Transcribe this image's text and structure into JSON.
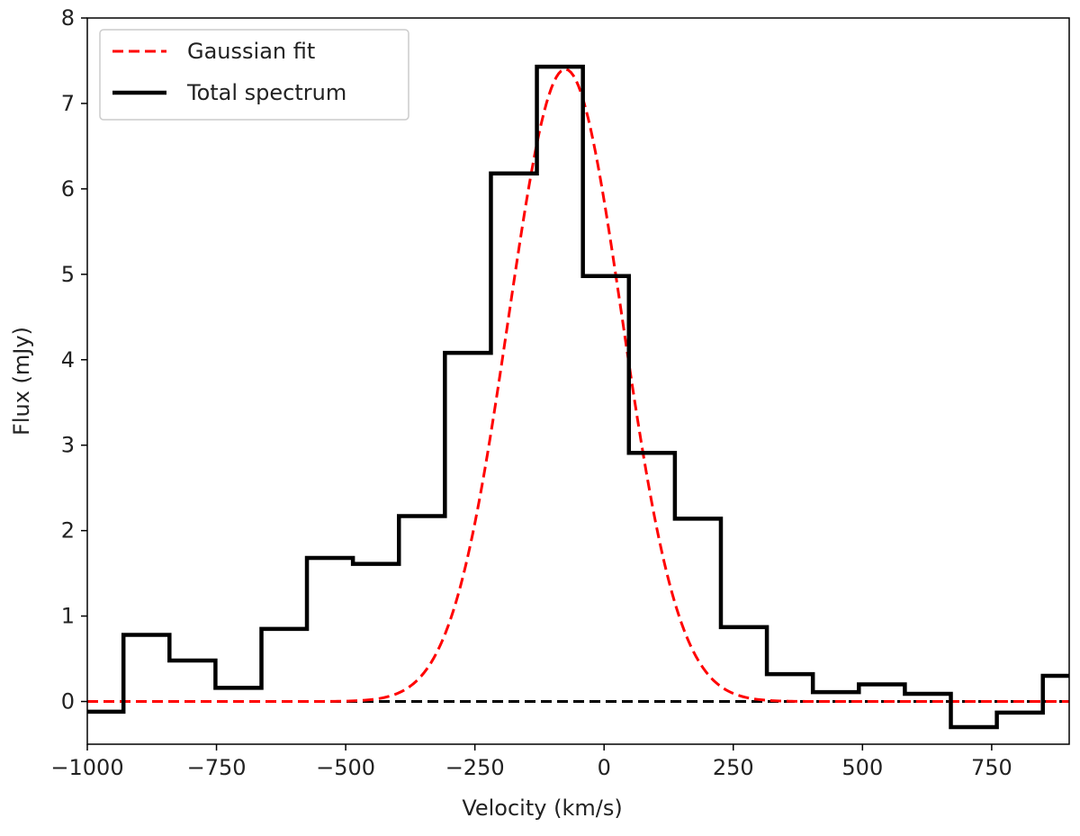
{
  "chart_data": {
    "type": "line",
    "title": "",
    "xlabel": "Velocity (km/s)",
    "ylabel": "Flux (mJy)",
    "xlim": [
      -1000,
      900
    ],
    "ylim": [
      -0.5,
      8
    ],
    "xticks": [
      -1000,
      -750,
      -500,
      -250,
      0,
      250,
      500,
      750
    ],
    "xtick_labels": [
      "−1000",
      "−750",
      "−500",
      "−250",
      "0",
      "250",
      "500",
      "750"
    ],
    "yticks": [
      0,
      1,
      2,
      3,
      4,
      5,
      6,
      7,
      8
    ],
    "ytick_labels": [
      "0",
      "1",
      "2",
      "3",
      "4",
      "5",
      "6",
      "7",
      "8"
    ],
    "legend_position": "top-left",
    "series": [
      {
        "name": "Total spectrum",
        "style": "step",
        "color": "#000000",
        "bin_edges": [
          -1000,
          -930,
          -841,
          -752,
          -663,
          -575,
          -486,
          -397,
          -308,
          -219,
          -130,
          -41,
          48,
          137,
          226,
          315,
          404,
          493,
          582,
          671,
          760,
          849,
          900
        ],
        "values": [
          -0.12,
          0.78,
          0.48,
          0.16,
          0.85,
          1.68,
          1.61,
          2.17,
          4.08,
          6.18,
          7.43,
          4.98,
          2.91,
          2.14,
          0.87,
          0.32,
          0.11,
          0.2,
          0.09,
          -0.3,
          -0.13,
          0.3
        ]
      },
      {
        "name": "Gaussian fit",
        "style": "dashed",
        "color": "#ff0000",
        "model": "gaussian",
        "amplitude": 7.4,
        "center": -75,
        "sigma": 110
      },
      {
        "name": "zero level",
        "style": "dashed",
        "color": "#000000",
        "y": 0
      }
    ]
  }
}
